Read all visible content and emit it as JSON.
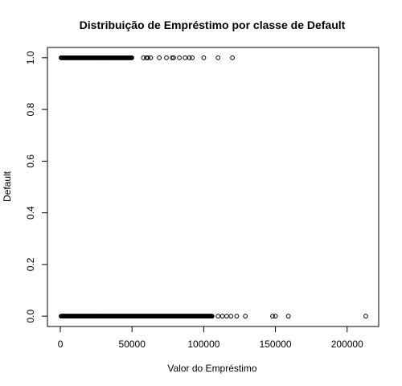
{
  "chart_data": {
    "type": "scatter",
    "title": "Distribuição de Empréstimo por classe de Default",
    "xlabel": "Valor do Empréstimo",
    "ylabel": "Default",
    "xlim": [
      -9000,
      222000
    ],
    "ylim": [
      -0.04,
      1.04
    ],
    "xticks": [
      0,
      50000,
      100000,
      150000,
      200000
    ],
    "xtick_labels": [
      "0",
      "50000",
      "100000",
      "150000",
      "200000"
    ],
    "yticks": [
      0.0,
      0.2,
      0.4,
      0.6,
      0.8,
      1.0
    ],
    "ytick_labels": [
      "0.0",
      "0.2",
      "0.4",
      "0.6",
      "0.8",
      "1.0"
    ],
    "grid": false,
    "series": [
      {
        "default": 1,
        "dense_range": [
          500,
          50000
        ],
        "x": [
          58000,
          60000,
          61000,
          63000,
          69000,
          74000,
          78000,
          79000,
          83000,
          87000,
          90000,
          92000,
          100000,
          110000,
          120000
        ]
      },
      {
        "default": 0,
        "dense_range": [
          500,
          106000
        ],
        "x": [
          110000,
          113000,
          116000,
          119000,
          123000,
          129000,
          148000,
          150000,
          159000,
          213000
        ]
      }
    ]
  }
}
